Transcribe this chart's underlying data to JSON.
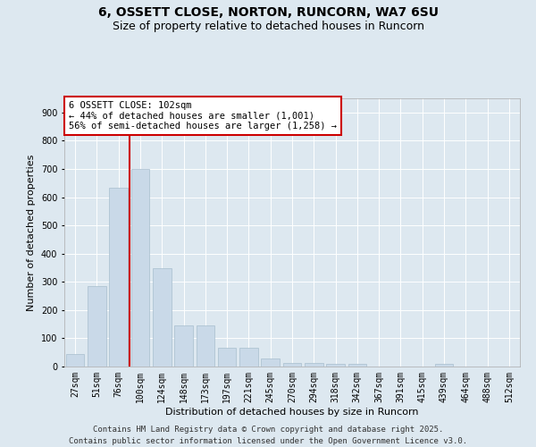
{
  "title_line1": "6, OSSETT CLOSE, NORTON, RUNCORN, WA7 6SU",
  "title_line2": "Size of property relative to detached houses in Runcorn",
  "xlabel": "Distribution of detached houses by size in Runcorn",
  "ylabel": "Number of detached properties",
  "categories": [
    "27sqm",
    "51sqm",
    "76sqm",
    "100sqm",
    "124sqm",
    "148sqm",
    "173sqm",
    "197sqm",
    "221sqm",
    "245sqm",
    "270sqm",
    "294sqm",
    "318sqm",
    "342sqm",
    "367sqm",
    "391sqm",
    "415sqm",
    "439sqm",
    "464sqm",
    "488sqm",
    "512sqm"
  ],
  "values": [
    44,
    284,
    632,
    700,
    348,
    147,
    147,
    65,
    65,
    30,
    14,
    14,
    10,
    10,
    0,
    0,
    0,
    8,
    0,
    0,
    0
  ],
  "bar_color": "#c9d9e8",
  "bar_edge_color": "#a8bece",
  "highlight_line_index": 3,
  "highlight_color": "#cc0000",
  "annotation_text": "6 OSSETT CLOSE: 102sqm\n← 44% of detached houses are smaller (1,001)\n56% of semi-detached houses are larger (1,258) →",
  "annotation_box_color": "#ffffff",
  "annotation_box_edge": "#cc0000",
  "background_color": "#dde8f0",
  "grid_color": "#ffffff",
  "ylim": [
    0,
    950
  ],
  "yticks": [
    0,
    100,
    200,
    300,
    400,
    500,
    600,
    700,
    800,
    900
  ],
  "footer_text": "Contains HM Land Registry data © Crown copyright and database right 2025.\nContains public sector information licensed under the Open Government Licence v3.0.",
  "title_fontsize": 10,
  "subtitle_fontsize": 9,
  "axis_label_fontsize": 8,
  "tick_fontsize": 7,
  "annotation_fontsize": 7.5,
  "footer_fontsize": 6.5
}
